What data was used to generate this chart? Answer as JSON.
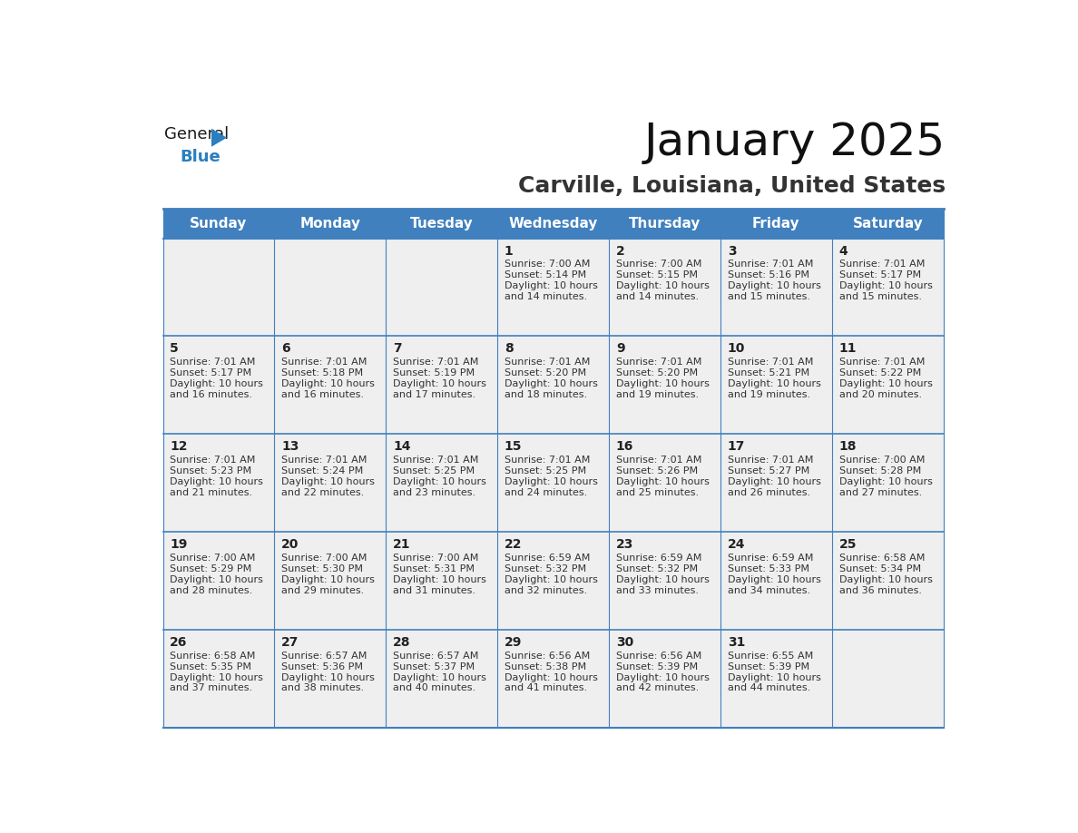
{
  "title": "January 2025",
  "subtitle": "Carville, Louisiana, United States",
  "header_bg": "#4080bf",
  "header_text_color": "#ffffff",
  "cell_bg": "#efefef",
  "border_color": "#4080bf",
  "border_color_thin": "#a0b8d0",
  "day_names": [
    "Sunday",
    "Monday",
    "Tuesday",
    "Wednesday",
    "Thursday",
    "Friday",
    "Saturday"
  ],
  "days": [
    {
      "day": 1,
      "col": 3,
      "row": 0,
      "sunrise": "7:00 AM",
      "sunset": "5:14 PM",
      "daylight": "10 hours and 14 minutes."
    },
    {
      "day": 2,
      "col": 4,
      "row": 0,
      "sunrise": "7:00 AM",
      "sunset": "5:15 PM",
      "daylight": "10 hours and 14 minutes."
    },
    {
      "day": 3,
      "col": 5,
      "row": 0,
      "sunrise": "7:01 AM",
      "sunset": "5:16 PM",
      "daylight": "10 hours and 15 minutes."
    },
    {
      "day": 4,
      "col": 6,
      "row": 0,
      "sunrise": "7:01 AM",
      "sunset": "5:17 PM",
      "daylight": "10 hours and 15 minutes."
    },
    {
      "day": 5,
      "col": 0,
      "row": 1,
      "sunrise": "7:01 AM",
      "sunset": "5:17 PM",
      "daylight": "10 hours and 16 minutes."
    },
    {
      "day": 6,
      "col": 1,
      "row": 1,
      "sunrise": "7:01 AM",
      "sunset": "5:18 PM",
      "daylight": "10 hours and 16 minutes."
    },
    {
      "day": 7,
      "col": 2,
      "row": 1,
      "sunrise": "7:01 AM",
      "sunset": "5:19 PM",
      "daylight": "10 hours and 17 minutes."
    },
    {
      "day": 8,
      "col": 3,
      "row": 1,
      "sunrise": "7:01 AM",
      "sunset": "5:20 PM",
      "daylight": "10 hours and 18 minutes."
    },
    {
      "day": 9,
      "col": 4,
      "row": 1,
      "sunrise": "7:01 AM",
      "sunset": "5:20 PM",
      "daylight": "10 hours and 19 minutes."
    },
    {
      "day": 10,
      "col": 5,
      "row": 1,
      "sunrise": "7:01 AM",
      "sunset": "5:21 PM",
      "daylight": "10 hours and 19 minutes."
    },
    {
      "day": 11,
      "col": 6,
      "row": 1,
      "sunrise": "7:01 AM",
      "sunset": "5:22 PM",
      "daylight": "10 hours and 20 minutes."
    },
    {
      "day": 12,
      "col": 0,
      "row": 2,
      "sunrise": "7:01 AM",
      "sunset": "5:23 PM",
      "daylight": "10 hours and 21 minutes."
    },
    {
      "day": 13,
      "col": 1,
      "row": 2,
      "sunrise": "7:01 AM",
      "sunset": "5:24 PM",
      "daylight": "10 hours and 22 minutes."
    },
    {
      "day": 14,
      "col": 2,
      "row": 2,
      "sunrise": "7:01 AM",
      "sunset": "5:25 PM",
      "daylight": "10 hours and 23 minutes."
    },
    {
      "day": 15,
      "col": 3,
      "row": 2,
      "sunrise": "7:01 AM",
      "sunset": "5:25 PM",
      "daylight": "10 hours and 24 minutes."
    },
    {
      "day": 16,
      "col": 4,
      "row": 2,
      "sunrise": "7:01 AM",
      "sunset": "5:26 PM",
      "daylight": "10 hours and 25 minutes."
    },
    {
      "day": 17,
      "col": 5,
      "row": 2,
      "sunrise": "7:01 AM",
      "sunset": "5:27 PM",
      "daylight": "10 hours and 26 minutes."
    },
    {
      "day": 18,
      "col": 6,
      "row": 2,
      "sunrise": "7:00 AM",
      "sunset": "5:28 PM",
      "daylight": "10 hours and 27 minutes."
    },
    {
      "day": 19,
      "col": 0,
      "row": 3,
      "sunrise": "7:00 AM",
      "sunset": "5:29 PM",
      "daylight": "10 hours and 28 minutes."
    },
    {
      "day": 20,
      "col": 1,
      "row": 3,
      "sunrise": "7:00 AM",
      "sunset": "5:30 PM",
      "daylight": "10 hours and 29 minutes."
    },
    {
      "day": 21,
      "col": 2,
      "row": 3,
      "sunrise": "7:00 AM",
      "sunset": "5:31 PM",
      "daylight": "10 hours and 31 minutes."
    },
    {
      "day": 22,
      "col": 3,
      "row": 3,
      "sunrise": "6:59 AM",
      "sunset": "5:32 PM",
      "daylight": "10 hours and 32 minutes."
    },
    {
      "day": 23,
      "col": 4,
      "row": 3,
      "sunrise": "6:59 AM",
      "sunset": "5:32 PM",
      "daylight": "10 hours and 33 minutes."
    },
    {
      "day": 24,
      "col": 5,
      "row": 3,
      "sunrise": "6:59 AM",
      "sunset": "5:33 PM",
      "daylight": "10 hours and 34 minutes."
    },
    {
      "day": 25,
      "col": 6,
      "row": 3,
      "sunrise": "6:58 AM",
      "sunset": "5:34 PM",
      "daylight": "10 hours and 36 minutes."
    },
    {
      "day": 26,
      "col": 0,
      "row": 4,
      "sunrise": "6:58 AM",
      "sunset": "5:35 PM",
      "daylight": "10 hours and 37 minutes."
    },
    {
      "day": 27,
      "col": 1,
      "row": 4,
      "sunrise": "6:57 AM",
      "sunset": "5:36 PM",
      "daylight": "10 hours and 38 minutes."
    },
    {
      "day": 28,
      "col": 2,
      "row": 4,
      "sunrise": "6:57 AM",
      "sunset": "5:37 PM",
      "daylight": "10 hours and 40 minutes."
    },
    {
      "day": 29,
      "col": 3,
      "row": 4,
      "sunrise": "6:56 AM",
      "sunset": "5:38 PM",
      "daylight": "10 hours and 41 minutes."
    },
    {
      "day": 30,
      "col": 4,
      "row": 4,
      "sunrise": "6:56 AM",
      "sunset": "5:39 PM",
      "daylight": "10 hours and 42 minutes."
    },
    {
      "day": 31,
      "col": 5,
      "row": 4,
      "sunrise": "6:55 AM",
      "sunset": "5:39 PM",
      "daylight": "10 hours and 44 minutes."
    }
  ],
  "logo_text1": "General",
  "logo_text2": "Blue",
  "logo_color1": "#1a1a1a",
  "logo_color2": "#2a7fc0",
  "logo_triangle_color": "#2a7fc0",
  "title_fontsize": 36,
  "subtitle_fontsize": 18,
  "header_fontsize": 11,
  "daynum_fontsize": 10,
  "info_fontsize": 8
}
